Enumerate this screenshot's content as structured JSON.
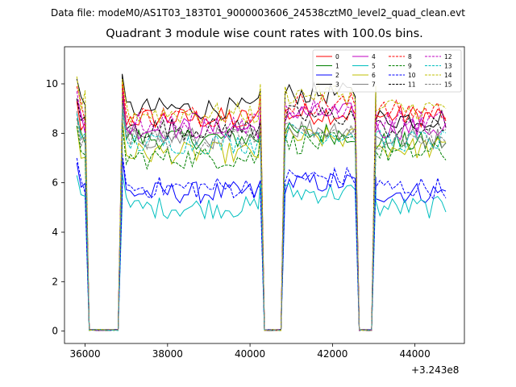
{
  "figure": {
    "suptitle": "Data file: modeM0/AS1T03_183T01_9000003606_24538cztM0_level2_quad_clean.evt",
    "offset_text": "+3.243e8"
  },
  "chart_data": {
    "type": "line",
    "title": "Quadrant 3 module wise count rates with 100.0s bins.",
    "xlabel": "",
    "ylabel": "",
    "xlim": [
      35500,
      45200
    ],
    "ylim": [
      -0.5,
      11.5
    ],
    "x_offset": 324300000,
    "xticks": [
      36000,
      38000,
      40000,
      42000,
      44000
    ],
    "xtick_labels": [
      "36000",
      "38000",
      "40000",
      "42000",
      "44000"
    ],
    "yticks": [
      0,
      2,
      4,
      6,
      8,
      10
    ],
    "ytick_labels": [
      "0",
      "2",
      "4",
      "6",
      "8",
      "10"
    ],
    "grid": false,
    "legend_position": "upper-right",
    "legend_columns": 4,
    "segments": [
      {
        "start": 35800,
        "end": 36900,
        "off_from": 36050,
        "off_to": 36800
      },
      {
        "start": 36900,
        "end": 40250,
        "off_from": null,
        "off_to": null
      },
      {
        "start": 40250,
        "end": 43050,
        "off_from": 40350,
        "off_to": 40800,
        "off2_from": 42600,
        "off2_to": 42950
      },
      {
        "start": 43050,
        "end": 44750,
        "off_from": null,
        "off_to": null
      }
    ],
    "series": [
      {
        "name": "0",
        "color": "#ff0000",
        "dash": "solid",
        "level": [
          8.3,
          8.6,
          8.8,
          8.7
        ]
      },
      {
        "name": "1",
        "color": "#008000",
        "dash": "solid",
        "level": [
          7.6,
          7.8,
          8.0,
          7.6
        ]
      },
      {
        "name": "2",
        "color": "#0000ff",
        "dash": "solid",
        "level": [
          5.8,
          5.6,
          6.0,
          5.6
        ]
      },
      {
        "name": "3",
        "color": "#000000",
        "dash": "solid",
        "level": [
          9.2,
          9.0,
          9.6,
          8.6
        ]
      },
      {
        "name": "4",
        "color": "#c000c0",
        "dash": "solid",
        "level": [
          8.4,
          8.2,
          8.8,
          8.2
        ]
      },
      {
        "name": "5",
        "color": "#00bfbf",
        "dash": "solid",
        "level": [
          5.3,
          5.0,
          5.6,
          5.0
        ]
      },
      {
        "name": "6",
        "color": "#bfbf00",
        "dash": "solid",
        "level": [
          7.3,
          7.2,
          7.8,
          7.4
        ]
      },
      {
        "name": "7",
        "color": "#808080",
        "dash": "solid",
        "level": [
          7.9,
          7.8,
          8.2,
          7.8
        ]
      },
      {
        "name": "8",
        "color": "#ff0000",
        "dash": "dashed",
        "level": [
          8.9,
          8.7,
          9.2,
          8.9
        ]
      },
      {
        "name": "9",
        "color": "#008000",
        "dash": "dashed",
        "level": [
          7.3,
          7.0,
          7.6,
          7.2
        ]
      },
      {
        "name": "10",
        "color": "#0000ff",
        "dash": "dashed",
        "level": [
          6.0,
          5.8,
          6.2,
          5.8
        ]
      },
      {
        "name": "11",
        "color": "#000000",
        "dash": "dashed",
        "level": [
          8.4,
          8.2,
          8.7,
          8.2
        ]
      },
      {
        "name": "12",
        "color": "#c000c0",
        "dash": "dashed",
        "level": [
          8.7,
          8.4,
          9.0,
          8.5
        ]
      },
      {
        "name": "13",
        "color": "#00bfbf",
        "dash": "dashed",
        "level": [
          7.8,
          7.6,
          8.0,
          7.7
        ]
      },
      {
        "name": "14",
        "color": "#bfbf00",
        "dash": "dashed",
        "level": [
          9.3,
          8.8,
          9.6,
          9.0
        ]
      },
      {
        "name": "15",
        "color": "#808080",
        "dash": "dashed",
        "level": [
          7.6,
          7.8,
          8.0,
          7.8
        ]
      }
    ]
  }
}
